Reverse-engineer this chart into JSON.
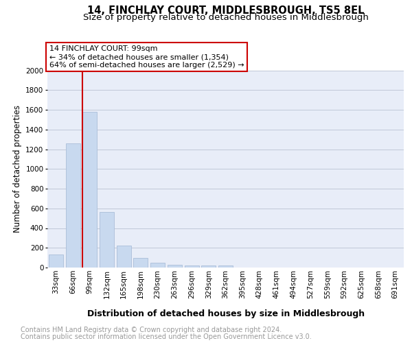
{
  "title": "14, FINCHLAY COURT, MIDDLESBROUGH, TS5 8EL",
  "subtitle": "Size of property relative to detached houses in Middlesbrough",
  "xlabel": "Distribution of detached houses by size in Middlesbrough",
  "ylabel": "Number of detached properties",
  "categories": [
    "33sqm",
    "66sqm",
    "99sqm",
    "132sqm",
    "165sqm",
    "198sqm",
    "230sqm",
    "263sqm",
    "296sqm",
    "329sqm",
    "362sqm",
    "395sqm",
    "428sqm",
    "461sqm",
    "494sqm",
    "527sqm",
    "559sqm",
    "592sqm",
    "625sqm",
    "658sqm",
    "691sqm"
  ],
  "values": [
    130,
    1260,
    1580,
    565,
    220,
    100,
    52,
    28,
    22,
    20,
    20,
    0,
    0,
    0,
    0,
    0,
    0,
    0,
    0,
    0,
    0
  ],
  "bar_color": "#c8d9ef",
  "bar_edge_color": "#aabdd8",
  "red_line_index": 2,
  "annotation_title": "14 FINCHLAY COURT: 99sqm",
  "annotation_line1": "← 34% of detached houses are smaller (1,354)",
  "annotation_line2": "64% of semi-detached houses are larger (2,529) →",
  "annotation_box_color": "#ffffff",
  "annotation_box_edge": "#cc0000",
  "red_line_color": "#cc0000",
  "ylim": [
    0,
    2000
  ],
  "yticks": [
    0,
    200,
    400,
    600,
    800,
    1000,
    1200,
    1400,
    1600,
    1800,
    2000
  ],
  "grid_color": "#c0c8d8",
  "bg_color": "#e8edf8",
  "footer_line1": "Contains HM Land Registry data © Crown copyright and database right 2024.",
  "footer_line2": "Contains public sector information licensed under the Open Government Licence v3.0.",
  "title_fontsize": 10.5,
  "subtitle_fontsize": 9.5,
  "xlabel_fontsize": 9,
  "ylabel_fontsize": 8.5,
  "tick_fontsize": 7.5,
  "footer_fontsize": 7,
  "ann_fontsize": 8
}
